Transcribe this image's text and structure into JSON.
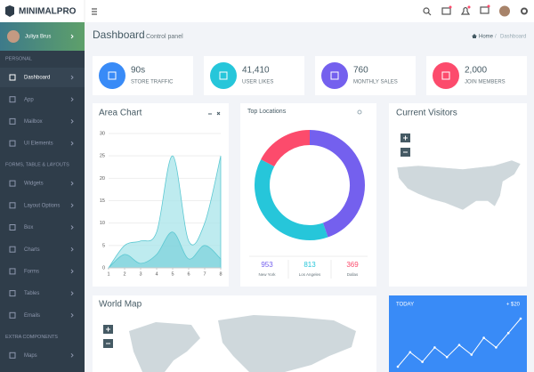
{
  "brand": "MINIMALPRO",
  "user": "Juliya Brus",
  "header": {
    "title": "Dashboard",
    "subtitle": "Control panel"
  },
  "breadcrumb": {
    "home": "Home",
    "current": "Dashboard"
  },
  "sidebar": [
    {
      "title": "PERSONAL",
      "items": [
        "Dashboard",
        "App",
        "Mailbox",
        "UI Elements"
      ]
    },
    {
      "title": "FORMS, TABLE & LAYOUTS",
      "items": [
        "Widgets",
        "Layout Options",
        "Box",
        "Charts",
        "Forms",
        "Tables",
        "Emails"
      ]
    },
    {
      "title": "EXTRA COMPONENTS",
      "items": [
        "Maps"
      ]
    }
  ],
  "stats": [
    {
      "value": "90s",
      "label": "STORE TRAFFIC",
      "color": "#398bf7"
    },
    {
      "value": "41,410",
      "label": "USER LIKES",
      "color": "#26c6da"
    },
    {
      "value": "760",
      "label": "MONTHLY SALES",
      "color": "#7460ee"
    },
    {
      "value": "2,000",
      "label": "JOIN MEMBERS",
      "color": "#fc4b6c"
    }
  ],
  "area_chart": {
    "type": "area",
    "title": "Area Chart",
    "x": [
      1,
      2,
      3,
      4,
      5,
      6,
      7,
      8
    ],
    "series": [
      {
        "color": "#a8e4ea",
        "values": [
          0,
          5,
          6,
          8,
          25,
          6,
          10,
          25
        ]
      },
      {
        "color": "#7fd3dc",
        "values": [
          0,
          3,
          1,
          3,
          8,
          2,
          5,
          2
        ]
      }
    ],
    "xlim": [
      1,
      8
    ],
    "ylim": [
      0,
      30
    ],
    "xticks": [
      1,
      2,
      3,
      4,
      5,
      6,
      7,
      8
    ],
    "yticks": [
      0,
      5,
      10,
      15,
      20,
      25,
      30
    ]
  },
  "top_locations": {
    "type": "donut",
    "title": "Top Locations",
    "categories": [
      "New York",
      "Los Angeles",
      "Dallas"
    ],
    "values": [
      953,
      813,
      369
    ],
    "colors": [
      "#7460ee",
      "#26c6da",
      "#fc4b6c"
    ]
  },
  "current_visitors": {
    "title": "Current Visitors"
  },
  "world_map": {
    "title": "World Map"
  },
  "today": {
    "type": "line",
    "title": "TODAY",
    "change": "+ $20",
    "color": "#ffffff",
    "values": [
      0,
      6,
      2,
      8,
      4,
      9,
      5,
      12,
      8,
      14,
      20
    ]
  }
}
